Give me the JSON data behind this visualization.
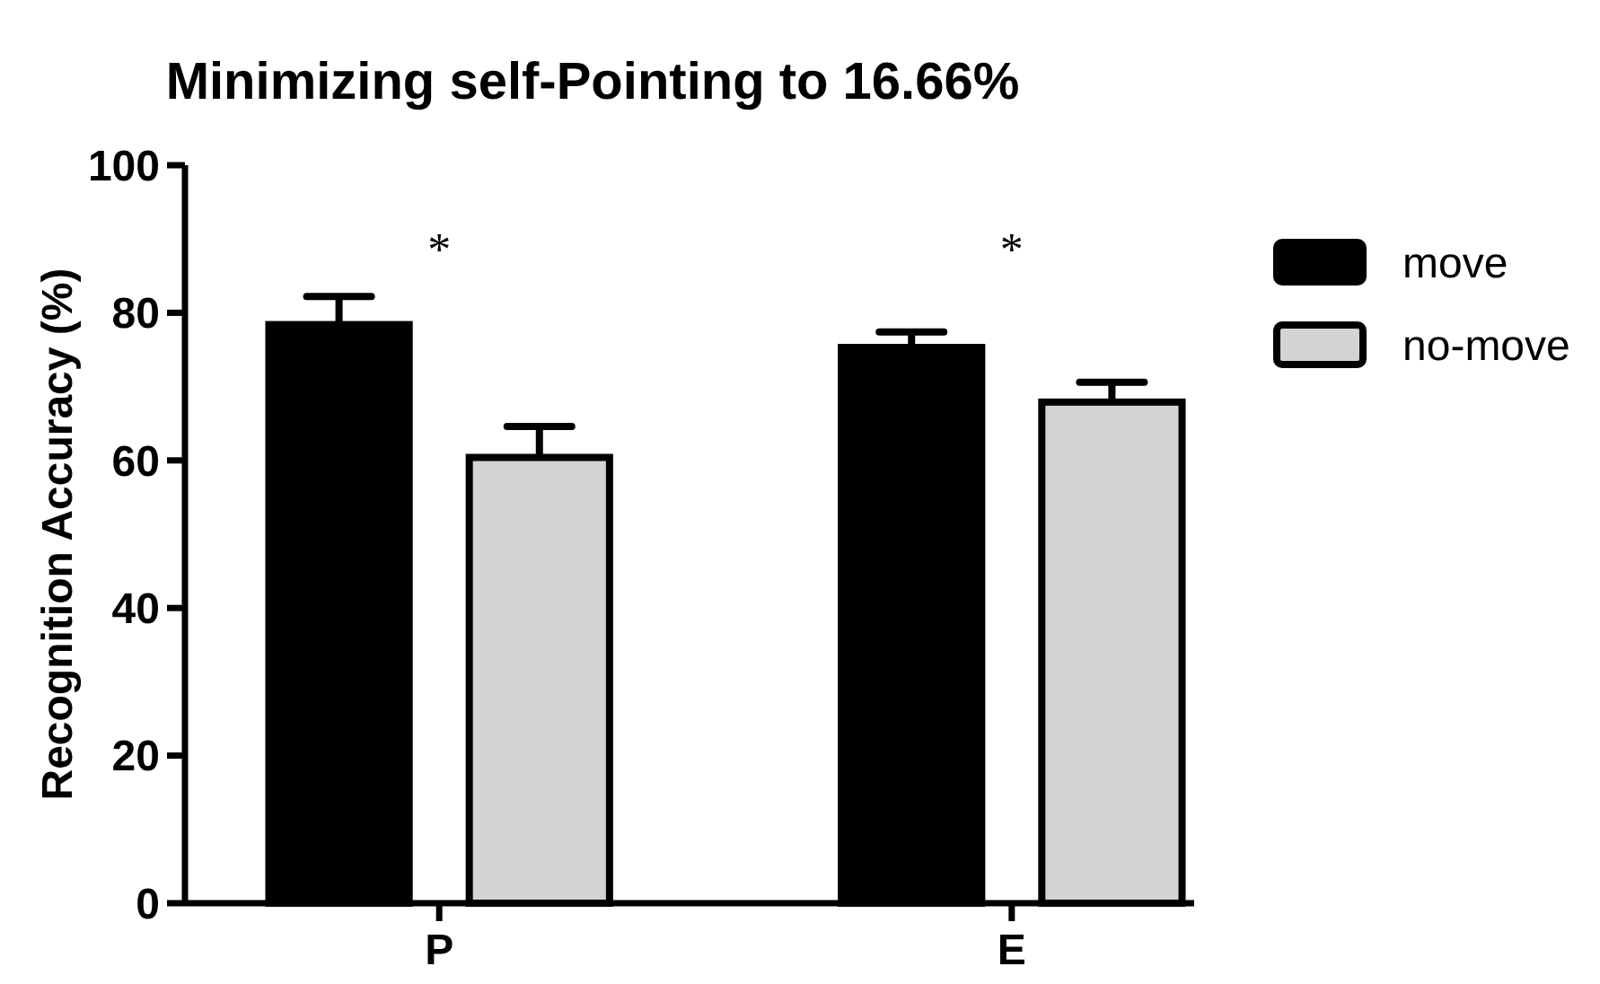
{
  "chart_data": {
    "type": "bar",
    "title": "Minimizing self-Pointing to 16.66%",
    "ylabel": "Recognition Accuracy (%)",
    "categories": [
      "P",
      "E"
    ],
    "series": [
      {
        "name": "move",
        "color": "#000000",
        "values": [
          78.4,
          75.3
        ],
        "errors": [
          [
            78.4,
            82.2
          ],
          [
            75.3,
            77.4
          ]
        ]
      },
      {
        "name": "no-move",
        "color": "#d3d3d3",
        "values": [
          60.4,
          67.9
        ],
        "errors": [
          [
            60.4,
            64.6
          ],
          [
            67.9,
            70.6
          ]
        ]
      }
    ],
    "ylim": [
      0,
      100
    ],
    "yticks": [
      0,
      20,
      40,
      60,
      80,
      100
    ],
    "grid": false,
    "legend": "top right",
    "annotations": [
      "*",
      "*"
    ]
  }
}
